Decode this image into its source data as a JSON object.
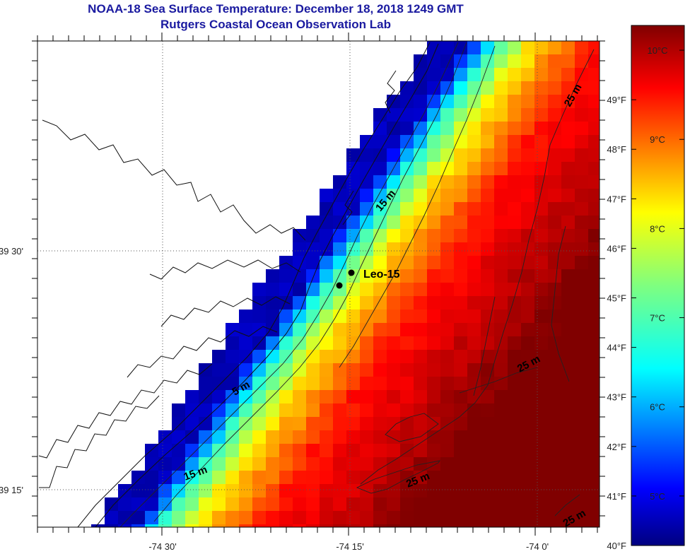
{
  "map": {
    "title": "NOAA-18 Sea Surface Temperature:  December 18, 2018 1249 GMT",
    "subtitle": "Rutgers Coastal Ocean Observation Lab",
    "lon_labels": [
      "-74 30'",
      "-74 15'",
      "-74 0'"
    ],
    "lat_labels": [
      "39 30'",
      "39 15'"
    ],
    "station": {
      "name": "Leo-15"
    },
    "depth_labels": [
      "25 m",
      "25 m",
      "25 m",
      "25 m",
      "15 m",
      "15 m",
      "5 m"
    ]
  },
  "colorbar": {
    "f_labels": [
      "49°F",
      "48°F",
      "47°F",
      "46°F",
      "45°F",
      "44°F",
      "43°F",
      "42°F",
      "41°F",
      "40°F"
    ],
    "c_labels": [
      "10°C",
      "9°C",
      "8°C",
      "7°C",
      "6°C",
      "5°C"
    ],
    "f_values": [
      49,
      48,
      47,
      46,
      45,
      44,
      43,
      42,
      41,
      40
    ],
    "c_values": [
      10,
      9,
      8,
      7,
      6,
      5
    ],
    "range_f": [
      40,
      50.5
    ]
  }
}
